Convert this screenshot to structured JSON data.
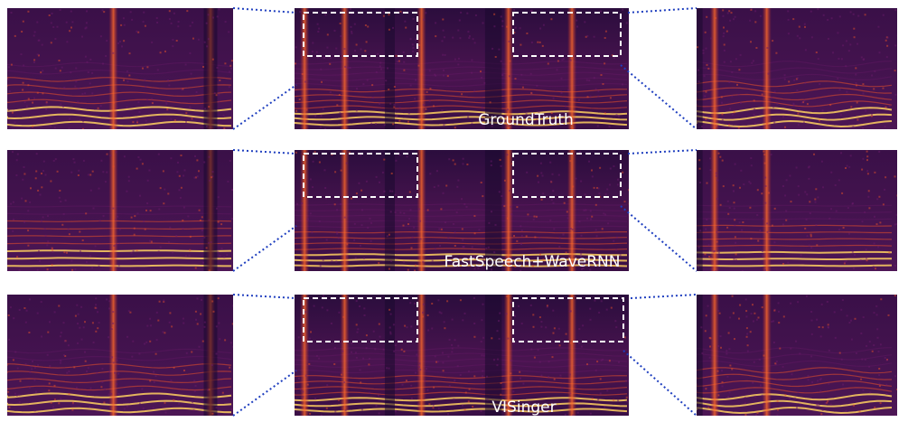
{
  "rows": [
    {
      "label": "GroundTruth"
    },
    {
      "label": "FastSpeech+WaveRNN"
    },
    {
      "label": "VISinger"
    }
  ],
  "colors": {
    "background": "#1a0a2e",
    "mid": "#6a1a6a",
    "hot": "#e8502a",
    "harmonic": "#ffd060",
    "highlight_box": "#ffffff",
    "connector": "#1f3fbf"
  }
}
